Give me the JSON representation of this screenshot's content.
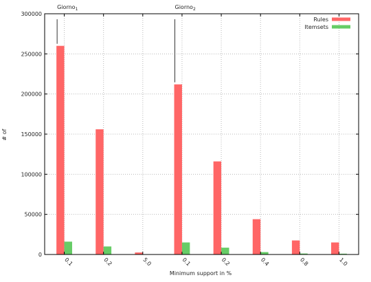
{
  "chart_data": {
    "type": "bar",
    "title": "",
    "xlabel": "Minimum support in %",
    "ylabel": "# of",
    "ylim": [
      0,
      300000
    ],
    "yticks": [
      0,
      50000,
      100000,
      150000,
      200000,
      250000,
      300000
    ],
    "grid": true,
    "legend_position": "top-right",
    "categories": [
      "0.1",
      "0.2",
      "5.0",
      "0.1",
      "0.2",
      "0.4",
      "0.8",
      "1.0"
    ],
    "groups": [
      {
        "label": "Giorno",
        "subscript": "1",
        "start_index": 0
      },
      {
        "label": "Giorno",
        "subscript": "2",
        "start_index": 3
      }
    ],
    "series": [
      {
        "name": "Rules",
        "color": "#ff6666",
        "values": [
          260000,
          156000,
          2500,
          212000,
          116000,
          44000,
          17500,
          15000
        ]
      },
      {
        "name": "Itemsets",
        "color": "#66cc66",
        "values": [
          16000,
          10000,
          300,
          15000,
          8500,
          3000,
          1200,
          1000
        ]
      }
    ]
  }
}
